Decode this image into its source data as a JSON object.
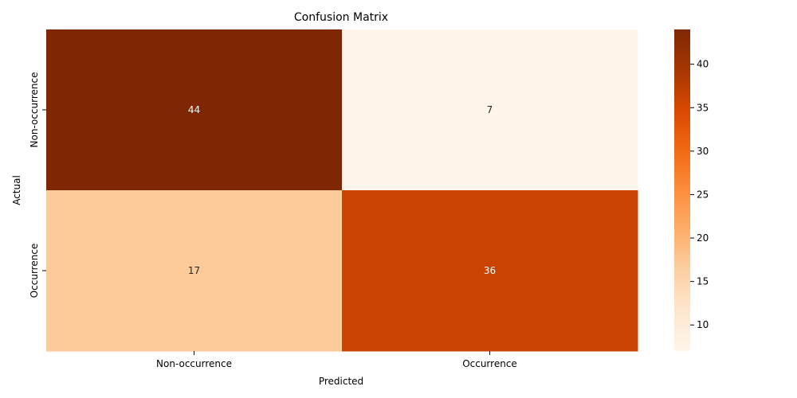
{
  "chart_data": {
    "type": "heatmap",
    "title": "Confusion Matrix",
    "xlabel": "Predicted",
    "ylabel": "Actual",
    "x_categories": [
      "Non-occurrence",
      "Occurrence"
    ],
    "y_categories": [
      "Non-occurrence",
      "Occurrence"
    ],
    "matrix": [
      [
        44,
        7
      ],
      [
        17,
        36
      ]
    ],
    "colormap": "Oranges",
    "color_range": [
      7,
      44
    ],
    "colorbar_ticks": [
      10,
      15,
      20,
      25,
      30,
      35,
      40
    ],
    "colorbar_stops": [
      {
        "t": 0.0,
        "color": "#fff5eb"
      },
      {
        "t": 0.125,
        "color": "#fee6ce"
      },
      {
        "t": 0.25,
        "color": "#fdd0a2"
      },
      {
        "t": 0.375,
        "color": "#fdae6b"
      },
      {
        "t": 0.5,
        "color": "#fd8d3c"
      },
      {
        "t": 0.625,
        "color": "#f16913"
      },
      {
        "t": 0.75,
        "color": "#d94801"
      },
      {
        "t": 0.875,
        "color": "#a63603"
      },
      {
        "t": 1.0,
        "color": "#7f2704"
      }
    ],
    "cell_text_light": "#ffffff",
    "cell_text_dark": "#262626"
  }
}
